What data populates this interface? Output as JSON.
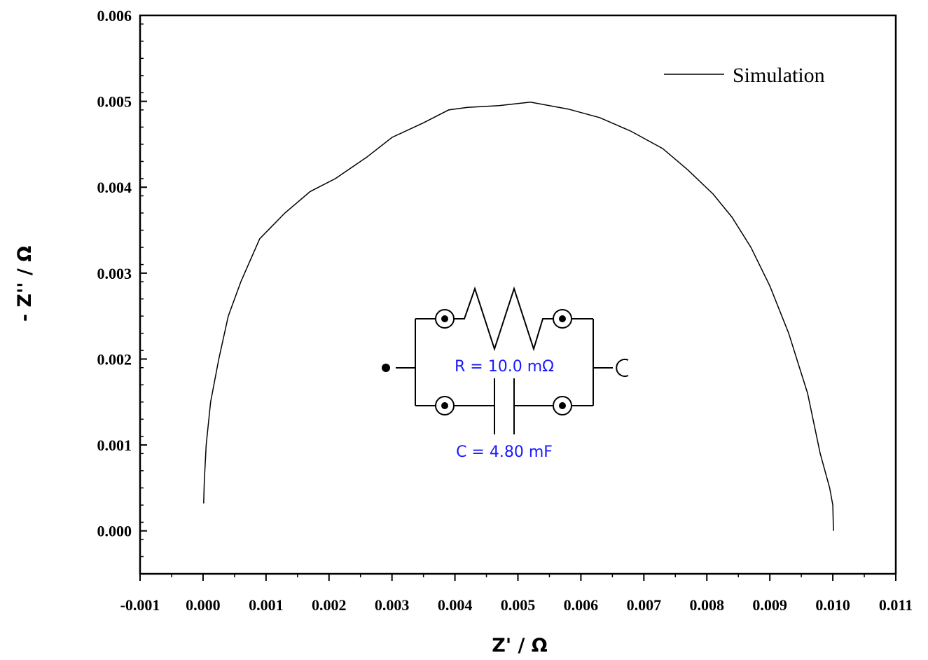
{
  "chart_data": {
    "type": "line",
    "xlabel": "Z' / Ω",
    "ylabel": "- Z'' / Ω",
    "xlim": [
      -0.001,
      0.011
    ],
    "ylim": [
      -0.0005,
      0.006
    ],
    "x_ticks": [
      "-0.001",
      "0.000",
      "0.001",
      "0.002",
      "0.003",
      "0.004",
      "0.005",
      "0.006",
      "0.007",
      "0.008",
      "0.009",
      "0.010",
      "0.011"
    ],
    "y_ticks": [
      "0.000",
      "0.001",
      "0.002",
      "0.003",
      "0.004",
      "0.005",
      "0.006"
    ],
    "grid": false,
    "legend_position": "top-right",
    "series": [
      {
        "name": "Simulation",
        "color": "#000000",
        "x": [
          1e-05,
          2e-05,
          5e-05,
          0.00012,
          0.00025,
          0.0004,
          0.0006,
          0.0009,
          0.0013,
          0.0017,
          0.0021,
          0.0026,
          0.003,
          0.0035,
          0.0039,
          0.0042,
          0.0047,
          0.0052,
          0.0058,
          0.0063,
          0.0068,
          0.0073,
          0.0077,
          0.0081,
          0.0084,
          0.0087,
          0.009,
          0.0093,
          0.0096,
          0.0098,
          0.00995,
          0.01,
          0.01001
        ],
        "y": [
          0.00032,
          0.00058,
          0.001,
          0.0015,
          0.002,
          0.0025,
          0.0029,
          0.0034,
          0.0037,
          0.00395,
          0.0041,
          0.00435,
          0.00458,
          0.00475,
          0.0049,
          0.00493,
          0.00495,
          0.00499,
          0.00491,
          0.00481,
          0.00465,
          0.00445,
          0.0042,
          0.00392,
          0.00365,
          0.0033,
          0.00285,
          0.0023,
          0.0016,
          0.0009,
          0.0005,
          0.0003,
          0.0
        ]
      }
    ],
    "annotations": [
      {
        "text": "R = 10.0 mΩ",
        "color": "#1a1aff"
      },
      {
        "text": "C = 4.80 mF",
        "color": "#1a1aff"
      }
    ]
  }
}
